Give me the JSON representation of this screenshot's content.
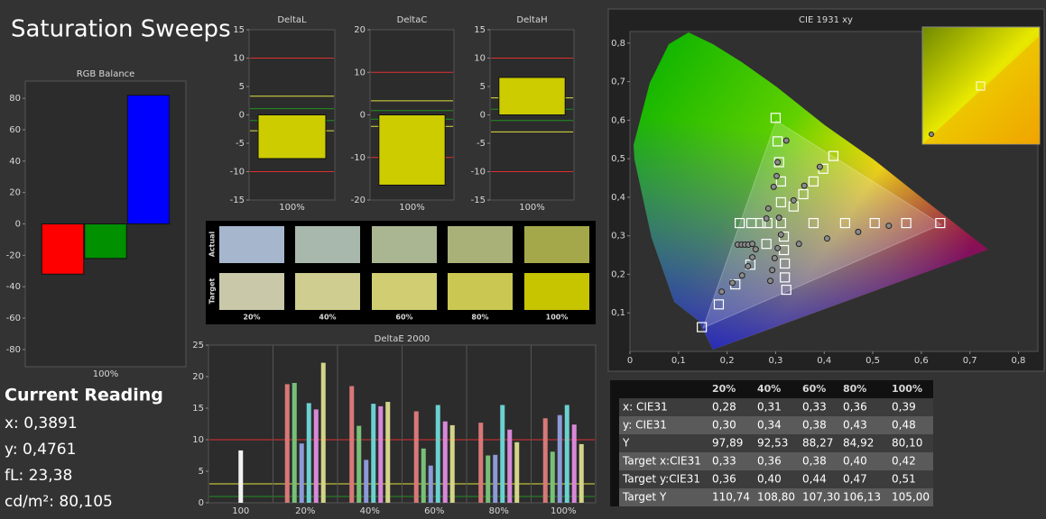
{
  "header": {
    "title": "Saturation Sweeps"
  },
  "reading": {
    "title": "Current Reading",
    "lines": [
      "x: 0,3891",
      "y: 0,4761",
      "fL: 23,38",
      "cd/m²: 80,105"
    ]
  },
  "swatches": {
    "row_labels": [
      "Actual",
      "Target"
    ],
    "columns": [
      "20%",
      "40%",
      "60%",
      "80%",
      "100%"
    ],
    "actual_colors": [
      "#a6b6cc",
      "#a8b8ad",
      "#aab592",
      "#a9b179",
      "#a5a84a"
    ],
    "target_colors": [
      "#c9c8a9",
      "#cfcd8f",
      "#d0cd72",
      "#cac852",
      "#c7c400"
    ]
  },
  "table": {
    "header": [
      "20%",
      "40%",
      "60%",
      "80%",
      "100%"
    ],
    "rows": [
      {
        "label": "x: CIE31",
        "cells": [
          "0,28",
          "0,31",
          "0,33",
          "0,36",
          "0,39"
        ]
      },
      {
        "label": "y: CIE31",
        "cells": [
          "0,30",
          "0,34",
          "0,38",
          "0,43",
          "0,48"
        ]
      },
      {
        "label": "Y",
        "cells": [
          "97,89",
          "92,53",
          "88,27",
          "84,92",
          "80,10"
        ]
      },
      {
        "label": "Target x:CIE31",
        "cells": [
          "0,33",
          "0,36",
          "0,38",
          "0,40",
          "0,42"
        ]
      },
      {
        "label": "Target y:CIE31",
        "cells": [
          "0,36",
          "0,40",
          "0,44",
          "0,47",
          "0,51"
        ]
      },
      {
        "label": "Target Y",
        "cells": [
          "110,74",
          "108,80",
          "107,30",
          "106,13",
          "105,00"
        ]
      }
    ]
  },
  "chart_data": [
    {
      "type": "bar",
      "title": "RGB Balance",
      "categories": [
        "100%"
      ],
      "series": [
        {
          "color": "#ff0000",
          "values": [
            -32
          ]
        },
        {
          "color": "#009000",
          "values": [
            -22
          ]
        },
        {
          "color": "#0000ff",
          "values": [
            82
          ]
        }
      ],
      "ylim": [
        -91,
        91
      ],
      "yticks": [
        -80,
        -60,
        -40,
        -20,
        0,
        20,
        40,
        60,
        80
      ]
    },
    {
      "type": "bar",
      "title": "DeltaL",
      "categories": [
        "100%"
      ],
      "series": [
        {
          "color": "#cccc00",
          "values": [
            -7.7
          ]
        }
      ],
      "ylim": [
        -15,
        15
      ],
      "yticks": [
        -15,
        -10,
        -5,
        0,
        5,
        10,
        15
      ],
      "reference_lines": [
        {
          "value": 10,
          "color": "#e03030"
        },
        {
          "value": -10,
          "color": "#e03030"
        },
        {
          "value": 3.3,
          "color": "#e0e040"
        },
        {
          "value": -2.8,
          "color": "#e0e040"
        },
        {
          "value": 1.1,
          "color": "#209020"
        },
        {
          "value": -1,
          "color": "#209020"
        }
      ]
    },
    {
      "type": "bar",
      "title": "DeltaC",
      "categories": [
        "100%"
      ],
      "series": [
        {
          "color": "#cccc00",
          "values": [
            -16.5
          ]
        }
      ],
      "ylim": [
        -20,
        20
      ],
      "yticks": [
        -20,
        -10,
        0,
        10,
        20
      ],
      "reference_lines": [
        {
          "value": 10,
          "color": "#e03030"
        },
        {
          "value": -10,
          "color": "#e03030"
        },
        {
          "value": 3.3,
          "color": "#e0e040"
        },
        {
          "value": -2.7,
          "color": "#e0e040"
        },
        {
          "value": 1,
          "color": "#209020"
        },
        {
          "value": -1,
          "color": "#209020"
        }
      ]
    },
    {
      "type": "bar",
      "title": "DeltaH",
      "categories": [
        "100%"
      ],
      "series": [
        {
          "color": "#cccc00",
          "values": [
            6.6
          ]
        }
      ],
      "ylim": [
        -15,
        15
      ],
      "yticks": [
        -15,
        -10,
        -5,
        0,
        5,
        10,
        15
      ],
      "reference_lines": [
        {
          "value": 10,
          "color": "#e03030"
        },
        {
          "value": -10,
          "color": "#e03030"
        },
        {
          "value": 3,
          "color": "#e0e040"
        },
        {
          "value": -3,
          "color": "#e0e040"
        },
        {
          "value": 1,
          "color": "#209020"
        },
        {
          "value": -1,
          "color": "#209020"
        }
      ]
    },
    {
      "type": "grouped_bar",
      "title": "DeltaE 2000",
      "categories": [
        "100",
        "20%",
        "40%",
        "60%",
        "80%",
        "100%"
      ],
      "series": [
        {
          "color": "#f2f2f2",
          "values": [
            8.3,
            null,
            null,
            null,
            null,
            null
          ]
        },
        {
          "color": "#d87878",
          "values": [
            null,
            18.8,
            18.5,
            14.5,
            12.7,
            13.4
          ]
        },
        {
          "color": "#78c078",
          "values": [
            null,
            19,
            12.2,
            8.6,
            7.5,
            8.1
          ]
        },
        {
          "color": "#8c9ad8",
          "values": [
            null,
            9.4,
            6.8,
            5.9,
            7.6,
            13.9
          ]
        },
        {
          "color": "#6cd0d0",
          "values": [
            null,
            15.8,
            15.7,
            15.5,
            15.5,
            15.5
          ]
        },
        {
          "color": "#d888d8",
          "values": [
            null,
            14.8,
            15.3,
            12.9,
            11.6,
            12.4
          ]
        },
        {
          "color": "#d4d488",
          "values": [
            null,
            22.2,
            16,
            12.3,
            9.6,
            9.3
          ]
        }
      ],
      "ylim": [
        0,
        25
      ],
      "yticks": [
        0,
        5,
        10,
        15,
        20,
        25
      ],
      "reference_lines": [
        {
          "value": 10,
          "color": "#e03030"
        },
        {
          "value": 3,
          "color": "#e0e040"
        },
        {
          "value": 1,
          "color": "#209020"
        }
      ]
    },
    {
      "type": "scatter",
      "title": "CIE 1931 xy",
      "xlim": [
        0,
        0.84
      ],
      "ylim": [
        0,
        0.83
      ],
      "xticks": [
        0,
        {
          "value": 0.1,
          "label": "0,1"
        },
        {
          "value": 0.2,
          "label": "0,2"
        },
        {
          "value": 0.3,
          "label": "0,3"
        },
        {
          "value": 0.4,
          "label": "0,4"
        },
        {
          "value": 0.5,
          "label": "0,5"
        },
        {
          "value": 0.6,
          "label": "0,6"
        },
        {
          "value": 0.7,
          "label": "0,7"
        },
        {
          "value": 0.8,
          "label": "0,8"
        }
      ],
      "yticks": [
        {
          "value": 0.1,
          "label": "0,1"
        },
        {
          "value": 0.2,
          "label": "0,2"
        },
        {
          "value": 0.3,
          "label": "0,3"
        },
        {
          "value": 0.4,
          "label": "0,4"
        },
        {
          "value": 0.5,
          "label": "0,5"
        },
        {
          "value": 0.6,
          "label": "0,6"
        },
        {
          "value": 0.7,
          "label": "0,7"
        },
        {
          "value": 0.8,
          "label": "0,8"
        }
      ],
      "series": [
        {
          "marker": "square",
          "color": "#ffffff",
          "x": [
            0.3,
            0.304,
            0.307,
            0.311,
            0.311,
            0.419,
            0.398,
            0.378,
            0.357,
            0.337,
            0.226,
            0.25,
            0.269,
            0.283,
            0.311,
            0.378,
            0.443,
            0.504,
            0.569,
            0.639,
            0.317,
            0.317,
            0.319,
            0.319,
            0.322,
            0.281,
            0.248,
            0.217,
            0.183,
            0.148
          ],
          "values": [
            0.606,
            0.545,
            0.491,
            0.441,
            0.387,
            0.507,
            0.474,
            0.441,
            0.408,
            0.376,
            0.333,
            0.333,
            0.333,
            0.333,
            0.333,
            0.333,
            0.333,
            0.333,
            0.333,
            0.333,
            0.298,
            0.263,
            0.228,
            0.192,
            0.16,
            0.279,
            0.225,
            0.174,
            0.122,
            0.063
          ]
        },
        {
          "marker": "circle",
          "color": "#8a8a8a",
          "x": [
            0.322,
            0.304,
            0.302,
            0.296,
            0.285,
            0.391,
            0.359,
            0.337,
            0.307,
            0.281,
            0.222,
            0.23,
            0.237,
            0.244,
            0.252,
            0.348,
            0.406,
            0.47,
            0.533,
            0.311,
            0.304,
            0.298,
            0.293,
            0.289,
            0.259,
            0.252,
            0.243,
            0.231,
            0.211,
            0.189
          ],
          "values": [
            0.547,
            0.491,
            0.455,
            0.427,
            0.371,
            0.479,
            0.43,
            0.392,
            0.347,
            0.345,
            0.277,
            0.277,
            0.277,
            0.277,
            0.279,
            0.279,
            0.293,
            0.31,
            0.326,
            0.303,
            0.268,
            0.242,
            0.211,
            0.183,
            0.265,
            0.244,
            0.221,
            0.197,
            0.178,
            0.155
          ]
        }
      ]
    }
  ]
}
